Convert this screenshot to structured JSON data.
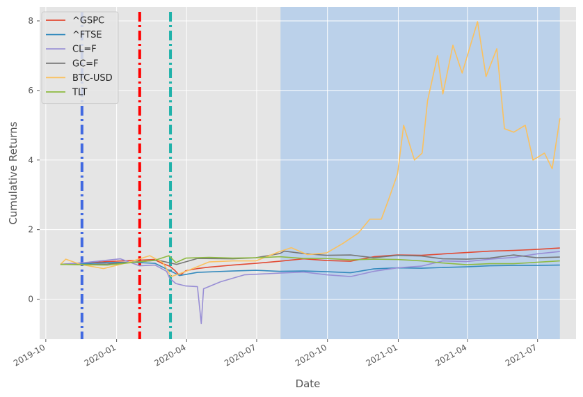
{
  "chart_data": {
    "type": "line",
    "title": "",
    "xlabel": "Date",
    "ylabel": "Cumulative Returns",
    "x_range": [
      "2019-09-23",
      "2021-08-20"
    ],
    "ylim": [
      -1.15,
      8.4
    ],
    "x_ticks": [
      {
        "date": "2019-10-01",
        "label": "2019-10"
      },
      {
        "date": "2020-01-01",
        "label": "2020-01"
      },
      {
        "date": "2020-04-01",
        "label": "2020-04"
      },
      {
        "date": "2020-07-01",
        "label": "2020-07"
      },
      {
        "date": "2020-10-01",
        "label": "2020-10"
      },
      {
        "date": "2021-01-01",
        "label": "2021-01"
      },
      {
        "date": "2021-04-01",
        "label": "2021-04"
      },
      {
        "date": "2021-07-01",
        "label": "2021-07"
      }
    ],
    "y_ticks": [
      0,
      2,
      4,
      6,
      8
    ],
    "grid": true,
    "legend_position": "top-left",
    "background": "#e5e5e5",
    "shaded_region": {
      "start": "2020-08-01",
      "end": "2021-07-30",
      "color": "#a9c9ec"
    },
    "vertical_lines": [
      {
        "date": "2019-11-17",
        "color": "#4169e1"
      },
      {
        "date": "2020-01-31",
        "color": "#ff0000"
      },
      {
        "date": "2020-03-11",
        "color": "#20b2aa"
      }
    ],
    "series": [
      {
        "name": "^GSPC",
        "color": "#e24a33",
        "points": [
          [
            "2019-10-20",
            1.0
          ],
          [
            "2019-11-20",
            1.04
          ],
          [
            "2019-12-20",
            1.08
          ],
          [
            "2020-01-20",
            1.11
          ],
          [
            "2020-02-19",
            1.14
          ],
          [
            "2020-03-01",
            1.02
          ],
          [
            "2020-03-10",
            0.95
          ],
          [
            "2020-03-16",
            0.84
          ],
          [
            "2020-03-23",
            0.68
          ],
          [
            "2020-03-31",
            0.82
          ],
          [
            "2020-04-15",
            0.88
          ],
          [
            "2020-04-30",
            0.92
          ],
          [
            "2020-05-31",
            0.98
          ],
          [
            "2020-06-30",
            1.03
          ],
          [
            "2020-07-31",
            1.09
          ],
          [
            "2020-08-31",
            1.16
          ],
          [
            "2020-09-30",
            1.11
          ],
          [
            "2020-10-31",
            1.09
          ],
          [
            "2020-11-30",
            1.22
          ],
          [
            "2020-12-31",
            1.27
          ],
          [
            "2021-01-31",
            1.26
          ],
          [
            "2021-02-28",
            1.3
          ],
          [
            "2021-03-31",
            1.34
          ],
          [
            "2021-04-30",
            1.38
          ],
          [
            "2021-05-31",
            1.4
          ],
          [
            "2021-06-30",
            1.43
          ],
          [
            "2021-07-30",
            1.47
          ]
        ]
      },
      {
        "name": "^FTSE",
        "color": "#348abd",
        "points": [
          [
            "2019-10-20",
            1.0
          ],
          [
            "2019-11-20",
            1.02
          ],
          [
            "2019-12-20",
            1.05
          ],
          [
            "2020-01-20",
            1.06
          ],
          [
            "2020-02-20",
            1.03
          ],
          [
            "2020-03-01",
            0.92
          ],
          [
            "2020-03-12",
            0.8
          ],
          [
            "2020-03-23",
            0.68
          ],
          [
            "2020-04-15",
            0.77
          ],
          [
            "2020-05-31",
            0.81
          ],
          [
            "2020-06-30",
            0.83
          ],
          [
            "2020-07-31",
            0.8
          ],
          [
            "2020-08-31",
            0.81
          ],
          [
            "2020-09-30",
            0.79
          ],
          [
            "2020-10-31",
            0.76
          ],
          [
            "2020-11-30",
            0.87
          ],
          [
            "2020-12-31",
            0.9
          ],
          [
            "2021-01-31",
            0.89
          ],
          [
            "2021-02-28",
            0.91
          ],
          [
            "2021-03-31",
            0.93
          ],
          [
            "2021-04-30",
            0.96
          ],
          [
            "2021-05-31",
            0.97
          ],
          [
            "2021-06-30",
            0.97
          ],
          [
            "2021-07-30",
            0.98
          ]
        ]
      },
      {
        "name": "CL=F",
        "color": "#988ed5",
        "points": [
          [
            "2019-10-20",
            1.0
          ],
          [
            "2019-11-20",
            1.05
          ],
          [
            "2019-12-20",
            1.12
          ],
          [
            "2020-01-06",
            1.16
          ],
          [
            "2020-01-31",
            0.96
          ],
          [
            "2020-02-20",
            0.98
          ],
          [
            "2020-03-06",
            0.8
          ],
          [
            "2020-03-10",
            0.6
          ],
          [
            "2020-03-18",
            0.45
          ],
          [
            "2020-03-31",
            0.38
          ],
          [
            "2020-04-15",
            0.36
          ],
          [
            "2020-04-20",
            -0.7
          ],
          [
            "2020-04-23",
            0.3
          ],
          [
            "2020-05-15",
            0.5
          ],
          [
            "2020-06-15",
            0.7
          ],
          [
            "2020-07-31",
            0.75
          ],
          [
            "2020-08-31",
            0.78
          ],
          [
            "2020-09-30",
            0.7
          ],
          [
            "2020-10-31",
            0.65
          ],
          [
            "2020-11-30",
            0.8
          ],
          [
            "2020-12-31",
            0.9
          ],
          [
            "2021-01-31",
            0.95
          ],
          [
            "2021-02-28",
            1.1
          ],
          [
            "2021-03-31",
            1.08
          ],
          [
            "2021-04-30",
            1.15
          ],
          [
            "2021-05-31",
            1.2
          ],
          [
            "2021-06-30",
            1.3
          ],
          [
            "2021-07-30",
            1.37
          ]
        ]
      },
      {
        "name": "GC=F",
        "color": "#777777",
        "points": [
          [
            "2019-10-20",
            1.0
          ],
          [
            "2019-11-20",
            0.99
          ],
          [
            "2019-12-20",
            1.01
          ],
          [
            "2020-01-20",
            1.06
          ],
          [
            "2020-02-24",
            1.12
          ],
          [
            "2020-03-19",
            1.0
          ],
          [
            "2020-04-15",
            1.17
          ],
          [
            "2020-05-31",
            1.16
          ],
          [
            "2020-06-30",
            1.19
          ],
          [
            "2020-07-31",
            1.31
          ],
          [
            "2020-08-06",
            1.38
          ],
          [
            "2020-08-31",
            1.31
          ],
          [
            "2020-09-30",
            1.26
          ],
          [
            "2020-10-31",
            1.27
          ],
          [
            "2020-11-30",
            1.19
          ],
          [
            "2020-12-31",
            1.26
          ],
          [
            "2021-01-31",
            1.24
          ],
          [
            "2021-02-28",
            1.16
          ],
          [
            "2021-03-31",
            1.15
          ],
          [
            "2021-04-30",
            1.18
          ],
          [
            "2021-05-31",
            1.27
          ],
          [
            "2021-06-30",
            1.19
          ],
          [
            "2021-07-30",
            1.21
          ]
        ]
      },
      {
        "name": "BTC-USD",
        "color": "#fbc15e",
        "points": [
          [
            "2019-10-20",
            1.0
          ],
          [
            "2019-10-27",
            1.15
          ],
          [
            "2019-11-15",
            1.0
          ],
          [
            "2019-12-15",
            0.88
          ],
          [
            "2020-01-15",
            1.05
          ],
          [
            "2020-02-13",
            1.25
          ],
          [
            "2020-03-01",
            1.05
          ],
          [
            "2020-03-12",
            0.65
          ],
          [
            "2020-03-31",
            0.8
          ],
          [
            "2020-04-30",
            1.07
          ],
          [
            "2020-05-31",
            1.1
          ],
          [
            "2020-06-30",
            1.1
          ],
          [
            "2020-07-31",
            1.37
          ],
          [
            "2020-08-15",
            1.48
          ],
          [
            "2020-09-05",
            1.28
          ],
          [
            "2020-09-30",
            1.33
          ],
          [
            "2020-10-21",
            1.6
          ],
          [
            "2020-11-10",
            1.9
          ],
          [
            "2020-11-25",
            2.3
          ],
          [
            "2020-12-10",
            2.3
          ],
          [
            "2020-12-20",
            2.9
          ],
          [
            "2020-12-31",
            3.6
          ],
          [
            "2021-01-08",
            5.0
          ],
          [
            "2021-01-22",
            4.0
          ],
          [
            "2021-02-01",
            4.2
          ],
          [
            "2021-02-08",
            5.7
          ],
          [
            "2021-02-21",
            7.0
          ],
          [
            "2021-02-28",
            5.9
          ],
          [
            "2021-03-13",
            7.3
          ],
          [
            "2021-03-25",
            6.5
          ],
          [
            "2021-04-14",
            7.98
          ],
          [
            "2021-04-25",
            6.4
          ],
          [
            "2021-05-09",
            7.2
          ],
          [
            "2021-05-19",
            4.9
          ],
          [
            "2021-05-31",
            4.8
          ],
          [
            "2021-06-15",
            5.0
          ],
          [
            "2021-06-25",
            4.0
          ],
          [
            "2021-07-10",
            4.2
          ],
          [
            "2021-07-20",
            3.75
          ],
          [
            "2021-07-30",
            5.2
          ]
        ]
      },
      {
        "name": "TLT",
        "color": "#8eba42",
        "points": [
          [
            "2019-10-20",
            1.0
          ],
          [
            "2019-11-20",
            0.99
          ],
          [
            "2019-12-20",
            0.98
          ],
          [
            "2020-01-20",
            1.05
          ],
          [
            "2020-02-20",
            1.12
          ],
          [
            "2020-03-09",
            1.25
          ],
          [
            "2020-03-18",
            1.05
          ],
          [
            "2020-03-31",
            1.18
          ],
          [
            "2020-04-30",
            1.2
          ],
          [
            "2020-05-31",
            1.18
          ],
          [
            "2020-06-30",
            1.19
          ],
          [
            "2020-07-31",
            1.22
          ],
          [
            "2020-08-31",
            1.17
          ],
          [
            "2020-09-30",
            1.17
          ],
          [
            "2020-10-31",
            1.13
          ],
          [
            "2020-11-30",
            1.15
          ],
          [
            "2020-12-31",
            1.14
          ],
          [
            "2021-01-31",
            1.1
          ],
          [
            "2021-02-28",
            1.04
          ],
          [
            "2021-03-31",
            0.99
          ],
          [
            "2021-04-30",
            1.02
          ],
          [
            "2021-05-31",
            1.02
          ],
          [
            "2021-06-30",
            1.06
          ],
          [
            "2021-07-30",
            1.1
          ]
        ]
      }
    ]
  }
}
